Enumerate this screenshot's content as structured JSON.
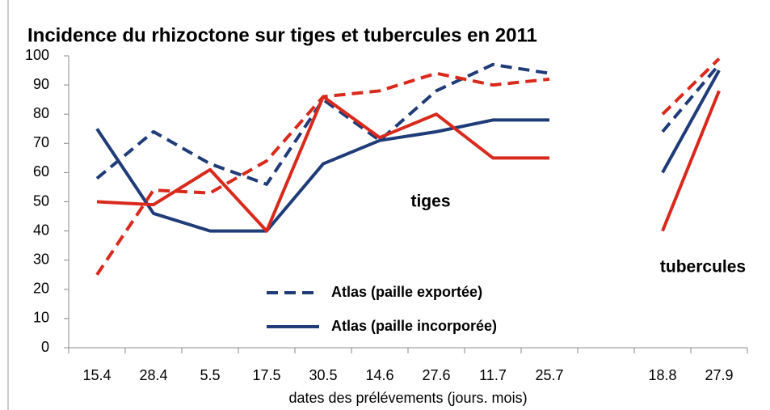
{
  "chart_data": {
    "type": "line",
    "title": "Incidence du rhizoctone sur tiges et tubercules en 2011",
    "x_label": "dates des prélévements (jours. mois)",
    "categories": [
      "15.4",
      "28.4",
      "5.5",
      "17.5",
      "30.5",
      "14.6",
      "27.6",
      "11.7",
      "25.7",
      null,
      "18.8",
      "27.9"
    ],
    "series": [
      {
        "name": "Atlas (paille exportée)",
        "color": "#1f3c78",
        "dashed": true,
        "values": [
          58,
          74,
          63,
          56,
          85,
          71,
          88,
          97,
          94,
          null,
          74,
          97
        ]
      },
      {
        "name": "Atlas (paille incorporée)",
        "color": "#1f3c78",
        "dashed": false,
        "values": [
          75,
          46,
          40,
          40,
          63,
          71,
          74,
          78,
          78,
          null,
          60,
          95
        ]
      },
      {
        "color": "#d9291c",
        "dashed": true,
        "values": [
          25,
          54,
          53,
          64,
          86,
          88,
          94,
          90,
          92,
          null,
          80,
          99
        ]
      },
      {
        "color": "#d9291c",
        "dashed": false,
        "values": [
          50,
          49,
          61,
          40,
          86,
          72,
          80,
          65,
          65,
          null,
          40,
          88
        ]
      }
    ],
    "annotations": [
      "tiges",
      "tubercules"
    ],
    "ylim": [
      0,
      100
    ],
    "yticks": [
      0,
      10,
      20,
      30,
      40,
      50,
      60,
      70,
      80,
      90,
      100
    ],
    "grid": false
  }
}
